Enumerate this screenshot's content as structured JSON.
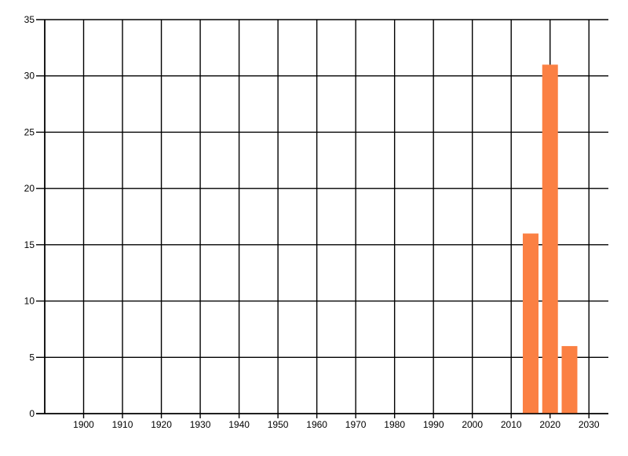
{
  "chart_data": {
    "type": "bar",
    "x": [
      2015,
      2020,
      2025
    ],
    "values": [
      16,
      31,
      6
    ],
    "bar_color": "#FB8043",
    "grid": true,
    "grid_color": "#000000",
    "background": "#ffffff",
    "legend_position": "none",
    "xlim": [
      1890,
      2035
    ],
    "ylim": [
      0,
      35
    ],
    "x_ticks": [
      1900,
      1910,
      1920,
      1930,
      1940,
      1950,
      1960,
      1970,
      1980,
      1990,
      2000,
      2010,
      2020,
      2030
    ],
    "y_ticks": [
      0,
      5,
      10,
      15,
      20,
      25,
      30,
      35
    ]
  }
}
